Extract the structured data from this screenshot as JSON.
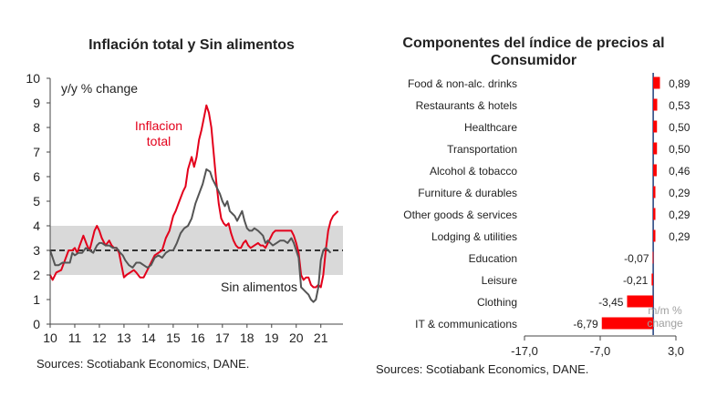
{
  "left_title": "Inflación  total y Sin alimentos",
  "right_title_line1": "Componentes del índice de precios al",
  "right_title_line2": "Consumidor",
  "left_source": "Sources: Scotiabank Economics, DANE.",
  "right_source": "Sources: Scotiabank Economics, DANE.",
  "colors": {
    "total": "#e3001b",
    "core": "#555555",
    "band": "#d9d9d9",
    "bar": "#ff0000",
    "zero_line": "#1f3d7a"
  },
  "chart_data": [
    {
      "type": "line",
      "title": "Inflación  total y Sin alimentos",
      "ylabel": "y/y % change",
      "xlim": [
        10,
        21.9
      ],
      "ylim": [
        0,
        10
      ],
      "x_ticks": [
        "10",
        "11",
        "12",
        "13",
        "14",
        "15",
        "16",
        "17",
        "18",
        "19",
        "20",
        "21"
      ],
      "y_ticks": [
        "0",
        "1",
        "2",
        "3",
        "4",
        "5",
        "6",
        "7",
        "8",
        "9",
        "10"
      ],
      "target_band": [
        2,
        4
      ],
      "target_line": 3,
      "annotations": [
        "Inflacion",
        "total",
        "Sin alimentos"
      ],
      "series": [
        {
          "name": "Inflacion total",
          "points": [
            [
              10.0,
              2.0
            ],
            [
              10.1,
              1.8
            ],
            [
              10.25,
              2.1
            ],
            [
              10.45,
              2.2
            ],
            [
              10.6,
              2.6
            ],
            [
              10.75,
              3.0
            ],
            [
              10.9,
              3.0
            ],
            [
              11.0,
              3.1
            ],
            [
              11.1,
              2.9
            ],
            [
              11.2,
              3.2
            ],
            [
              11.35,
              3.6
            ],
            [
              11.5,
              3.2
            ],
            [
              11.6,
              3.0
            ],
            [
              11.7,
              3.4
            ],
            [
              11.8,
              3.8
            ],
            [
              11.9,
              4.0
            ],
            [
              12.0,
              3.8
            ],
            [
              12.1,
              3.5
            ],
            [
              12.25,
              3.2
            ],
            [
              12.4,
              3.4
            ],
            [
              12.5,
              3.2
            ],
            [
              12.6,
              3.1
            ],
            [
              12.7,
              3.1
            ],
            [
              12.8,
              2.9
            ],
            [
              12.9,
              2.4
            ],
            [
              13.0,
              1.9
            ],
            [
              13.1,
              2.0
            ],
            [
              13.25,
              2.1
            ],
            [
              13.4,
              2.2
            ],
            [
              13.5,
              2.1
            ],
            [
              13.65,
              1.9
            ],
            [
              13.8,
              1.9
            ],
            [
              13.95,
              2.2
            ],
            [
              14.1,
              2.5
            ],
            [
              14.25,
              2.8
            ],
            [
              14.4,
              2.9
            ],
            [
              14.55,
              3.0
            ],
            [
              14.7,
              3.5
            ],
            [
              14.85,
              3.8
            ],
            [
              15.0,
              4.4
            ],
            [
              15.1,
              4.6
            ],
            [
              15.25,
              5.0
            ],
            [
              15.4,
              5.4
            ],
            [
              15.5,
              5.6
            ],
            [
              15.6,
              6.3
            ],
            [
              15.75,
              6.8
            ],
            [
              15.85,
              6.4
            ],
            [
              15.95,
              6.8
            ],
            [
              16.05,
              7.5
            ],
            [
              16.15,
              7.9
            ],
            [
              16.25,
              8.4
            ],
            [
              16.35,
              8.9
            ],
            [
              16.45,
              8.6
            ],
            [
              16.55,
              8.0
            ],
            [
              16.65,
              6.9
            ],
            [
              16.75,
              5.8
            ],
            [
              16.85,
              4.9
            ],
            [
              16.95,
              4.3
            ],
            [
              17.05,
              4.1
            ],
            [
              17.15,
              4.0
            ],
            [
              17.25,
              4.1
            ],
            [
              17.35,
              3.7
            ],
            [
              17.45,
              3.4
            ],
            [
              17.55,
              3.2
            ],
            [
              17.65,
              3.1
            ],
            [
              17.75,
              3.1
            ],
            [
              17.85,
              3.3
            ],
            [
              17.95,
              3.4
            ],
            [
              18.05,
              3.2
            ],
            [
              18.15,
              3.1
            ],
            [
              18.3,
              3.2
            ],
            [
              18.45,
              3.3
            ],
            [
              18.55,
              3.2
            ],
            [
              18.65,
              3.2
            ],
            [
              18.75,
              3.1
            ],
            [
              18.85,
              3.3
            ],
            [
              18.95,
              3.5
            ],
            [
              19.05,
              3.7
            ],
            [
              19.15,
              3.8
            ],
            [
              19.3,
              3.8
            ],
            [
              19.45,
              3.8
            ],
            [
              19.6,
              3.8
            ],
            [
              19.7,
              3.8
            ],
            [
              19.8,
              3.8
            ],
            [
              19.9,
              3.6
            ],
            [
              20.0,
              3.3
            ],
            [
              20.1,
              2.9
            ],
            [
              20.2,
              2.0
            ],
            [
              20.3,
              1.8
            ],
            [
              20.4,
              1.9
            ],
            [
              20.5,
              1.9
            ],
            [
              20.6,
              1.6
            ],
            [
              20.7,
              1.5
            ],
            [
              20.8,
              1.5
            ],
            [
              20.9,
              1.6
            ],
            [
              21.0,
              1.5
            ],
            [
              21.1,
              2.0
            ],
            [
              21.2,
              3.0
            ],
            [
              21.3,
              3.8
            ],
            [
              21.4,
              4.2
            ],
            [
              21.5,
              4.4
            ],
            [
              21.6,
              4.5
            ],
            [
              21.7,
              4.6
            ]
          ]
        },
        {
          "name": "Sin alimentos",
          "points": [
            [
              10.0,
              3.0
            ],
            [
              10.1,
              2.7
            ],
            [
              10.2,
              2.4
            ],
            [
              10.35,
              2.4
            ],
            [
              10.5,
              2.5
            ],
            [
              10.65,
              2.5
            ],
            [
              10.8,
              2.5
            ],
            [
              10.9,
              2.9
            ],
            [
              11.0,
              2.8
            ],
            [
              11.15,
              2.9
            ],
            [
              11.3,
              2.9
            ],
            [
              11.45,
              3.1
            ],
            [
              11.6,
              3.0
            ],
            [
              11.75,
              2.9
            ],
            [
              11.9,
              3.2
            ],
            [
              12.0,
              3.3
            ],
            [
              12.1,
              3.3
            ],
            [
              12.25,
              3.2
            ],
            [
              12.4,
              3.2
            ],
            [
              12.55,
              3.1
            ],
            [
              12.7,
              3.1
            ],
            [
              12.85,
              2.9
            ],
            [
              12.95,
              2.8
            ],
            [
              13.05,
              2.6
            ],
            [
              13.2,
              2.4
            ],
            [
              13.35,
              2.3
            ],
            [
              13.5,
              2.5
            ],
            [
              13.65,
              2.5
            ],
            [
              13.8,
              2.4
            ],
            [
              13.95,
              2.3
            ],
            [
              14.1,
              2.4
            ],
            [
              14.25,
              2.7
            ],
            [
              14.4,
              2.8
            ],
            [
              14.55,
              2.7
            ],
            [
              14.7,
              2.9
            ],
            [
              14.85,
              3.0
            ],
            [
              15.0,
              3.0
            ],
            [
              15.15,
              3.3
            ],
            [
              15.3,
              3.7
            ],
            [
              15.45,
              3.9
            ],
            [
              15.6,
              4.0
            ],
            [
              15.75,
              4.3
            ],
            [
              15.9,
              4.9
            ],
            [
              16.05,
              5.3
            ],
            [
              16.2,
              5.7
            ],
            [
              16.35,
              6.3
            ],
            [
              16.5,
              6.2
            ],
            [
              16.6,
              5.9
            ],
            [
              16.7,
              5.7
            ],
            [
              16.8,
              5.5
            ],
            [
              16.9,
              5.3
            ],
            [
              17.0,
              5.0
            ],
            [
              17.1,
              4.8
            ],
            [
              17.2,
              5.0
            ],
            [
              17.3,
              4.6
            ],
            [
              17.4,
              4.5
            ],
            [
              17.5,
              4.4
            ],
            [
              17.6,
              4.2
            ],
            [
              17.7,
              4.4
            ],
            [
              17.8,
              4.6
            ],
            [
              17.9,
              4.2
            ],
            [
              18.0,
              3.9
            ],
            [
              18.1,
              3.8
            ],
            [
              18.2,
              3.8
            ],
            [
              18.3,
              3.9
            ],
            [
              18.45,
              3.8
            ],
            [
              18.55,
              3.7
            ],
            [
              18.65,
              3.6
            ],
            [
              18.75,
              3.3
            ],
            [
              18.85,
              3.4
            ],
            [
              18.95,
              3.3
            ],
            [
              19.05,
              3.2
            ],
            [
              19.2,
              3.3
            ],
            [
              19.35,
              3.4
            ],
            [
              19.5,
              3.4
            ],
            [
              19.65,
              3.3
            ],
            [
              19.8,
              3.5
            ],
            [
              19.9,
              3.3
            ],
            [
              20.0,
              3.0
            ],
            [
              20.1,
              2.7
            ],
            [
              20.2,
              1.5
            ],
            [
              20.3,
              1.4
            ],
            [
              20.4,
              1.3
            ],
            [
              20.5,
              1.2
            ],
            [
              20.6,
              1.0
            ],
            [
              20.7,
              0.9
            ],
            [
              20.8,
              1.0
            ],
            [
              20.9,
              1.5
            ],
            [
              21.0,
              2.6
            ],
            [
              21.1,
              3.0
            ],
            [
              21.2,
              3.1
            ],
            [
              21.3,
              3.0
            ],
            [
              21.4,
              2.9
            ]
          ]
        }
      ]
    },
    {
      "type": "bar",
      "orientation": "horizontal",
      "title": "Componentes del índice de precios al Consumidor",
      "xlim": [
        -17,
        3
      ],
      "x_ticks": [
        "-17,0",
        "-7,0",
        "3,0"
      ],
      "unit_note": "m/m % change",
      "categories": [
        "Food & non-alc. drinks",
        "Restaurants & hotels",
        "Healthcare",
        "Transportation",
        "Alcohol & tobacco",
        "Furniture & durables",
        "Other goods & services",
        "Lodging & utilities",
        "Education",
        "Leisure",
        "Clothing",
        "IT & communications"
      ],
      "values": [
        0.89,
        0.53,
        0.5,
        0.5,
        0.46,
        0.29,
        0.29,
        0.29,
        -0.07,
        -0.21,
        -3.45,
        -6.79
      ],
      "labels": [
        "0,89",
        "0,53",
        "0,50",
        "0,50",
        "0,46",
        "0,29",
        "0,29",
        "0,29",
        "-0,07",
        "-0,21",
        "-3,45",
        "-6,79"
      ]
    }
  ]
}
